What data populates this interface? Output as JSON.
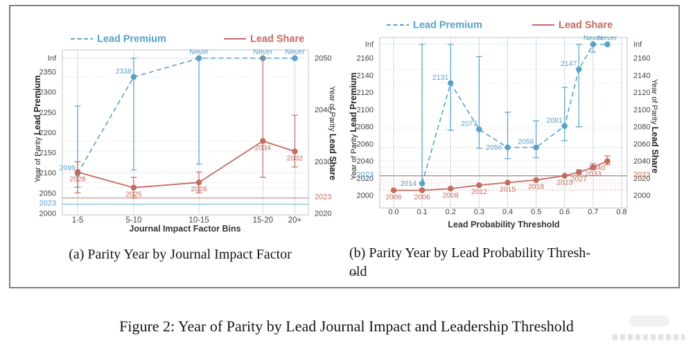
{
  "figure": {
    "caption_a": "(a) Parity Year by Journal Impact Factor",
    "caption_b_line1": "(b) Parity Year by Lead Probability Thresh-",
    "caption_b_line2": "old",
    "main_caption": "Figure 2: Year of Parity by Lead Journal Impact and Leadership Threshold",
    "ellipsis": "..."
  },
  "colors": {
    "premium": "#58a0c8",
    "share": "#c26b5f",
    "grid": "#ccd9e2",
    "plot_border": "#b3c4cf",
    "tick": "#3f3f3f",
    "frame": "#7d7d7d"
  },
  "legend": {
    "premium": "Lead Premium",
    "share": "Lead Share"
  },
  "chart_data": [
    {
      "id": "a",
      "type": "line",
      "caption": "(a) Parity Year by Journal Impact Factor",
      "xlabel": "Journal Impact Factor Bins",
      "categories": [
        "1-5",
        "5-10",
        "10-15",
        "15-20",
        "20+"
      ],
      "left_axis": {
        "title": "Year of Parity",
        "title_bold": "Lead Premium",
        "ticks": [
          2000,
          2050,
          2100,
          2150,
          2200,
          2250,
          2300,
          2350
        ],
        "inf_label": "Inf",
        "special_tick": 2023,
        "range": [
          2000,
          2350
        ]
      },
      "right_axis": {
        "title": "Year of Parity",
        "title_bold": "Lead Share",
        "ticks": [
          2020,
          2030,
          2040,
          2050
        ],
        "special_tick": 2023,
        "range": [
          2020,
          2050
        ]
      },
      "reference_year": 2023,
      "legend_position": "top",
      "grid": true,
      "series": [
        {
          "name": "Lead Premium",
          "axis": "left",
          "dashed": true,
          "points": [
            {
              "x": 0,
              "y": 2099,
              "label": "2099",
              "lp": "la",
              "err": [
                2065,
                2266
              ]
            },
            {
              "x": 1,
              "y": 2338,
              "label": "2338",
              "lp": "la",
              "err": [
                2108,
                "Inf"
              ]
            },
            {
              "x": 2,
              "y": "Never",
              "label": "Never",
              "lp": "a",
              "err": [
                2122,
                "Inf"
              ]
            },
            {
              "x": 3,
              "y": "Never",
              "label": "Never",
              "lp": "a"
            },
            {
              "x": 4,
              "y": "Never",
              "label": "Never",
              "lp": "a"
            }
          ]
        },
        {
          "name": "Lead Share",
          "axis": "right",
          "dashed": false,
          "points": [
            {
              "x": 0,
              "y": 2028,
              "label": "2028",
              "lp": "b",
              "err": [
                2024,
                2030
              ]
            },
            {
              "x": 1,
              "y": 2025,
              "label": "2025",
              "lp": "b",
              "err": [
                2023,
                2027
              ]
            },
            {
              "x": 2,
              "y": 2026,
              "label": "2026",
              "lp": "b",
              "err": [
                2024,
                2028
              ]
            },
            {
              "x": 3,
              "y": 2034,
              "label": "2034",
              "lp": "b",
              "err": [
                2027,
                "Inf"
              ]
            },
            {
              "x": 4,
              "y": 2032,
              "label": "2032",
              "lp": "b",
              "err": [
                2029,
                2039
              ]
            }
          ]
        }
      ]
    },
    {
      "id": "b",
      "type": "line",
      "caption": "(b) Parity Year by Lead Probability Threshold",
      "xlabel": "Lead Probability Threshold",
      "x_ticks": [
        0.0,
        0.1,
        0.2,
        0.3,
        0.4,
        0.5,
        0.6,
        0.7,
        0.8
      ],
      "left_axis": {
        "title": "Year of Parity",
        "title_bold": "Lead Premium",
        "ticks": [
          2000,
          2020,
          2040,
          2060,
          2080,
          2100,
          2120,
          2140,
          2160
        ],
        "inf_label": "Inf",
        "special_tick": 2023,
        "range": [
          2000,
          2160
        ]
      },
      "right_axis": {
        "title": "Year of Parity",
        "title_bold": "Lead Share",
        "ticks": [
          2000,
          2020,
          2040,
          2060,
          2080,
          2100,
          2120,
          2140,
          2160
        ],
        "inf_label": "Inf",
        "special_tick": 2023,
        "range": [
          2000,
          2160
        ]
      },
      "reference_year": 2023,
      "legend_position": "top",
      "grid": true,
      "series": [
        {
          "name": "Lead Premium",
          "axis": "left",
          "dashed": true,
          "points": [
            {
              "x": 0.1,
              "y": 2014,
              "label": "2014",
              "lp": "l",
              "err": [
                2008,
                "Inf"
              ]
            },
            {
              "x": 0.2,
              "y": 2131,
              "label": "2131",
              "lp": "la",
              "err": [
                2076,
                "Inf"
              ]
            },
            {
              "x": 0.3,
              "y": 2077,
              "label": "2077",
              "lp": "la",
              "err": [
                2055,
                2162
              ]
            },
            {
              "x": 0.4,
              "y": 2056,
              "label": "2056",
              "lp": "l",
              "err": [
                2043,
                2097
              ]
            },
            {
              "x": 0.5,
              "y": 2056,
              "label": "2056",
              "lp": "la",
              "err": [
                2044,
                2087
              ]
            },
            {
              "x": 0.6,
              "y": 2081,
              "label": "2081",
              "lp": "la",
              "err": [
                2064,
                2126
              ]
            },
            {
              "x": 0.65,
              "y": 2147,
              "label": "2147",
              "lp": "la",
              "err": [
                2080,
                "Inf"
              ]
            },
            {
              "x": 0.7,
              "y": "Never",
              "label": "Never",
              "lp": "a",
              "err": [
                2167,
                "Inf"
              ]
            },
            {
              "x": 0.75,
              "y": "Never",
              "label": "Never",
              "lp": "a"
            }
          ]
        },
        {
          "name": "Lead Share",
          "axis": "right",
          "dashed": false,
          "points": [
            {
              "x": 0.0,
              "y": 2006,
              "label": "2006",
              "lp": "b"
            },
            {
              "x": 0.1,
              "y": 2006,
              "label": "2006",
              "lp": "b"
            },
            {
              "x": 0.2,
              "y": 2008,
              "label": "2008",
              "lp": "b"
            },
            {
              "x": 0.3,
              "y": 2012,
              "label": "2012",
              "lp": "b"
            },
            {
              "x": 0.4,
              "y": 2015,
              "label": "2015",
              "lp": "b"
            },
            {
              "x": 0.5,
              "y": 2018,
              "label": "2018",
              "lp": "b"
            },
            {
              "x": 0.6,
              "y": 2023,
              "label": "2023",
              "lp": "b"
            },
            {
              "x": 0.65,
              "y": 2027,
              "label": "2027",
              "lp": "b",
              "err": [
                2025,
                2030
              ]
            },
            {
              "x": 0.7,
              "y": 2033,
              "label": "2033",
              "lp": "b",
              "err": [
                2030,
                2037
              ]
            },
            {
              "x": 0.75,
              "y": 2040,
              "label": "2040",
              "lp": "lb",
              "err": [
                2036,
                2046
              ]
            }
          ]
        }
      ]
    }
  ]
}
